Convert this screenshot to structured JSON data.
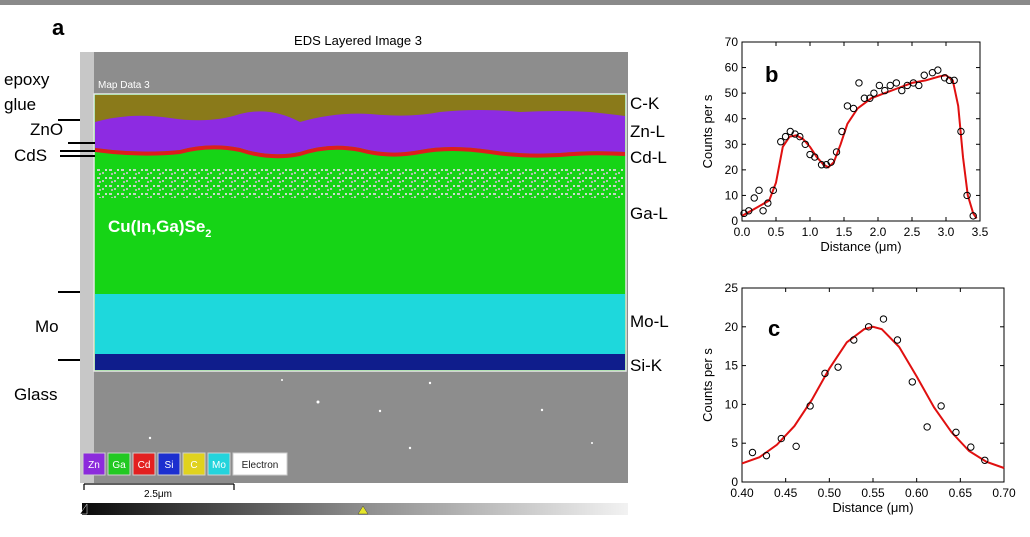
{
  "panel_a": {
    "letter": "a",
    "title": "EDS Layered Image 3",
    "map_label": "Map Data 3",
    "cigs_label": "Cu(In,Ga)Se",
    "cigs_sub": "2",
    "left_labels": [
      "epoxy",
      "glue",
      "ZnO",
      "CdS",
      "Mo",
      "Glass"
    ],
    "right_labels": [
      "C-K",
      "Zn-L",
      "Cd-L",
      "Ga-L",
      "Mo-L",
      "Si-K"
    ],
    "legend": [
      {
        "label": "Zn",
        "color": "#8c2bdc"
      },
      {
        "label": "Ga",
        "color": "#22c922"
      },
      {
        "label": "Cd",
        "color": "#e32020"
      },
      {
        "label": "Si",
        "color": "#1c2fcf"
      },
      {
        "label": "C",
        "color": "#e0d21e"
      },
      {
        "label": "Mo",
        "color": "#23d4dc"
      },
      {
        "label": "Electron",
        "color": "#ffffff"
      }
    ],
    "scalebar": "2.5μm",
    "colors": {
      "epoxy": "#8a7a1a",
      "zn": "#8d2be2",
      "cd": "#dd1d1d",
      "cigs": "#16d416",
      "mo": "#1ed8dc",
      "si": "#0f1d8c",
      "sem": "#8d8d8d"
    }
  },
  "chart_data": [
    {
      "type": "scatter",
      "panel": "b",
      "xlabel": "Distance (μm)",
      "ylabel": "Counts per s",
      "xlim": [
        0,
        3.5
      ],
      "ylim": [
        0,
        70
      ],
      "xticks": [
        "0.0",
        "0.5",
        "1.0",
        "1.5",
        "2.0",
        "2.5",
        "3.0",
        "3.5"
      ],
      "yticks": [
        "0",
        "10",
        "20",
        "30",
        "40",
        "50",
        "60",
        "70"
      ],
      "points": [
        [
          0.03,
          3
        ],
        [
          0.1,
          4
        ],
        [
          0.18,
          9
        ],
        [
          0.25,
          12
        ],
        [
          0.31,
          4
        ],
        [
          0.38,
          7
        ],
        [
          0.46,
          12
        ],
        [
          0.57,
          31
        ],
        [
          0.64,
          33
        ],
        [
          0.71,
          35
        ],
        [
          0.78,
          34
        ],
        [
          0.85,
          33
        ],
        [
          0.93,
          30
        ],
        [
          1.0,
          26
        ],
        [
          1.07,
          25
        ],
        [
          1.17,
          22
        ],
        [
          1.24,
          22
        ],
        [
          1.31,
          23
        ],
        [
          1.39,
          27
        ],
        [
          1.47,
          35
        ],
        [
          1.55,
          45
        ],
        [
          1.64,
          44
        ],
        [
          1.72,
          54
        ],
        [
          1.8,
          48
        ],
        [
          1.88,
          48
        ],
        [
          1.94,
          50
        ],
        [
          2.02,
          53
        ],
        [
          2.1,
          51
        ],
        [
          2.18,
          53
        ],
        [
          2.27,
          54
        ],
        [
          2.35,
          51
        ],
        [
          2.43,
          53
        ],
        [
          2.52,
          54
        ],
        [
          2.6,
          53
        ],
        [
          2.68,
          57
        ],
        [
          2.8,
          58
        ],
        [
          2.88,
          59
        ],
        [
          2.98,
          56
        ],
        [
          3.05,
          55
        ],
        [
          3.12,
          55
        ],
        [
          3.22,
          35
        ],
        [
          3.31,
          10
        ],
        [
          3.4,
          2
        ]
      ],
      "fit": [
        [
          0,
          2
        ],
        [
          0.2,
          5
        ],
        [
          0.4,
          8
        ],
        [
          0.5,
          15
        ],
        [
          0.6,
          29
        ],
        [
          0.7,
          33
        ],
        [
          0.8,
          33.5
        ],
        [
          0.9,
          32
        ],
        [
          1.0,
          29
        ],
        [
          1.1,
          25
        ],
        [
          1.2,
          22
        ],
        [
          1.27,
          21
        ],
        [
          1.35,
          23
        ],
        [
          1.45,
          30
        ],
        [
          1.55,
          38
        ],
        [
          1.7,
          44
        ],
        [
          1.9,
          48
        ],
        [
          2.1,
          50
        ],
        [
          2.3,
          52
        ],
        [
          2.5,
          54
        ],
        [
          2.7,
          55
        ],
        [
          2.9,
          56.5
        ],
        [
          3.0,
          57
        ],
        [
          3.1,
          55
        ],
        [
          3.18,
          45
        ],
        [
          3.25,
          25
        ],
        [
          3.32,
          10
        ],
        [
          3.4,
          3
        ],
        [
          3.45,
          1
        ]
      ]
    },
    {
      "type": "scatter",
      "panel": "c",
      "xlabel": "Distance (μm)",
      "ylabel": "Counts per s",
      "xlim": [
        0.4,
        0.7
      ],
      "ylim": [
        0,
        25
      ],
      "xticks": [
        "0.40",
        "0.45",
        "0.50",
        "0.55",
        "0.60",
        "0.65",
        "0.70"
      ],
      "yticks": [
        "0",
        "5",
        "10",
        "15",
        "20",
        "25"
      ],
      "points": [
        [
          0.412,
          3.8
        ],
        [
          0.428,
          3.4
        ],
        [
          0.445,
          5.6
        ],
        [
          0.462,
          4.6
        ],
        [
          0.478,
          9.8
        ],
        [
          0.495,
          14
        ],
        [
          0.51,
          14.8
        ],
        [
          0.528,
          18.3
        ],
        [
          0.545,
          20
        ],
        [
          0.562,
          21
        ],
        [
          0.578,
          18.3
        ],
        [
          0.595,
          12.9
        ],
        [
          0.612,
          7.1
        ],
        [
          0.628,
          9.8
        ],
        [
          0.645,
          6.4
        ],
        [
          0.662,
          4.5
        ],
        [
          0.678,
          2.8
        ]
      ],
      "fit": [
        [
          0.4,
          2.4
        ],
        [
          0.42,
          3.2
        ],
        [
          0.44,
          4.8
        ],
        [
          0.46,
          7.2
        ],
        [
          0.48,
          10.6
        ],
        [
          0.5,
          14.6
        ],
        [
          0.52,
          18
        ],
        [
          0.54,
          19.7
        ],
        [
          0.55,
          20
        ],
        [
          0.56,
          19.7
        ],
        [
          0.58,
          17.4
        ],
        [
          0.6,
          13.6
        ],
        [
          0.62,
          9.6
        ],
        [
          0.64,
          6.4
        ],
        [
          0.66,
          4
        ],
        [
          0.68,
          2.6
        ],
        [
          0.7,
          1.8
        ]
      ]
    }
  ]
}
